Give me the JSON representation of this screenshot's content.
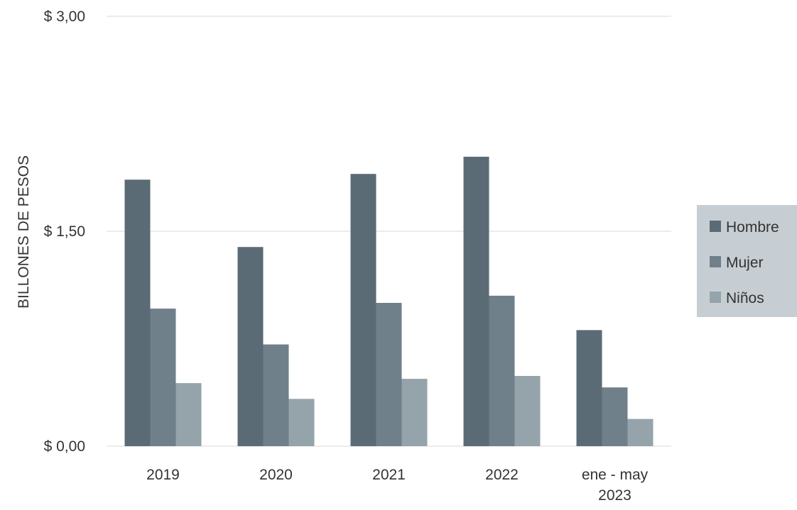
{
  "chart_data": {
    "type": "bar",
    "title": "",
    "xlabel": "",
    "ylabel": "BILLONES DE PESOS",
    "ylim": [
      0,
      3.0
    ],
    "yticks": [
      {
        "value": 0,
        "label": "$ 0,00"
      },
      {
        "value": 1.5,
        "label": "$ 1,50"
      },
      {
        "value": 3.0,
        "label": "$ 3,00"
      }
    ],
    "grid": true,
    "legend_position": "right",
    "categories": [
      [
        "2019"
      ],
      [
        "2020"
      ],
      [
        "2021"
      ],
      [
        "2022"
      ],
      [
        "ene - may",
        "2023"
      ]
    ],
    "series": [
      {
        "name": "Hombre",
        "color": "#5b6b76",
        "values": [
          1.86,
          1.39,
          1.9,
          2.02,
          0.81
        ]
      },
      {
        "name": "Mujer",
        "color": "#6f808b",
        "values": [
          0.96,
          0.71,
          1.0,
          1.05,
          0.41
        ]
      },
      {
        "name": "Niños",
        "color": "#95a3ab",
        "values": [
          0.44,
          0.33,
          0.47,
          0.49,
          0.19
        ]
      }
    ]
  },
  "legend": {
    "background": "#c7ced3"
  }
}
